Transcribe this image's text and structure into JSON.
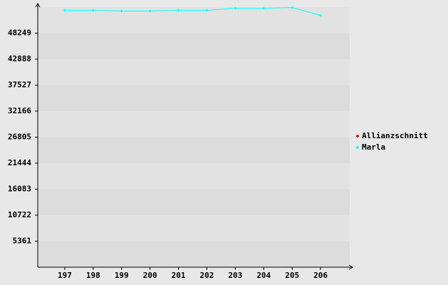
{
  "chart_data": {
    "type": "line",
    "categories": [
      "197",
      "198",
      "199",
      "200",
      "201",
      "202",
      "203",
      "204",
      "205",
      "206"
    ],
    "series": [
      {
        "name": "Allianzschnitt",
        "color": "#cc0000",
        "values": [
          null,
          null,
          null,
          null,
          null,
          null,
          null,
          null,
          null,
          null
        ]
      },
      {
        "name": "Marla",
        "color": "#00ffff",
        "values": [
          52950,
          52950,
          52800,
          52800,
          52950,
          52950,
          53390,
          53390,
          53540,
          51920
        ]
      }
    ],
    "ylim": [
      0,
      53610
    ],
    "yticks": [
      5361,
      10722,
      16083,
      21444,
      26805,
      32166,
      37527,
      42888,
      48249
    ],
    "grid": true,
    "legend": "right"
  }
}
